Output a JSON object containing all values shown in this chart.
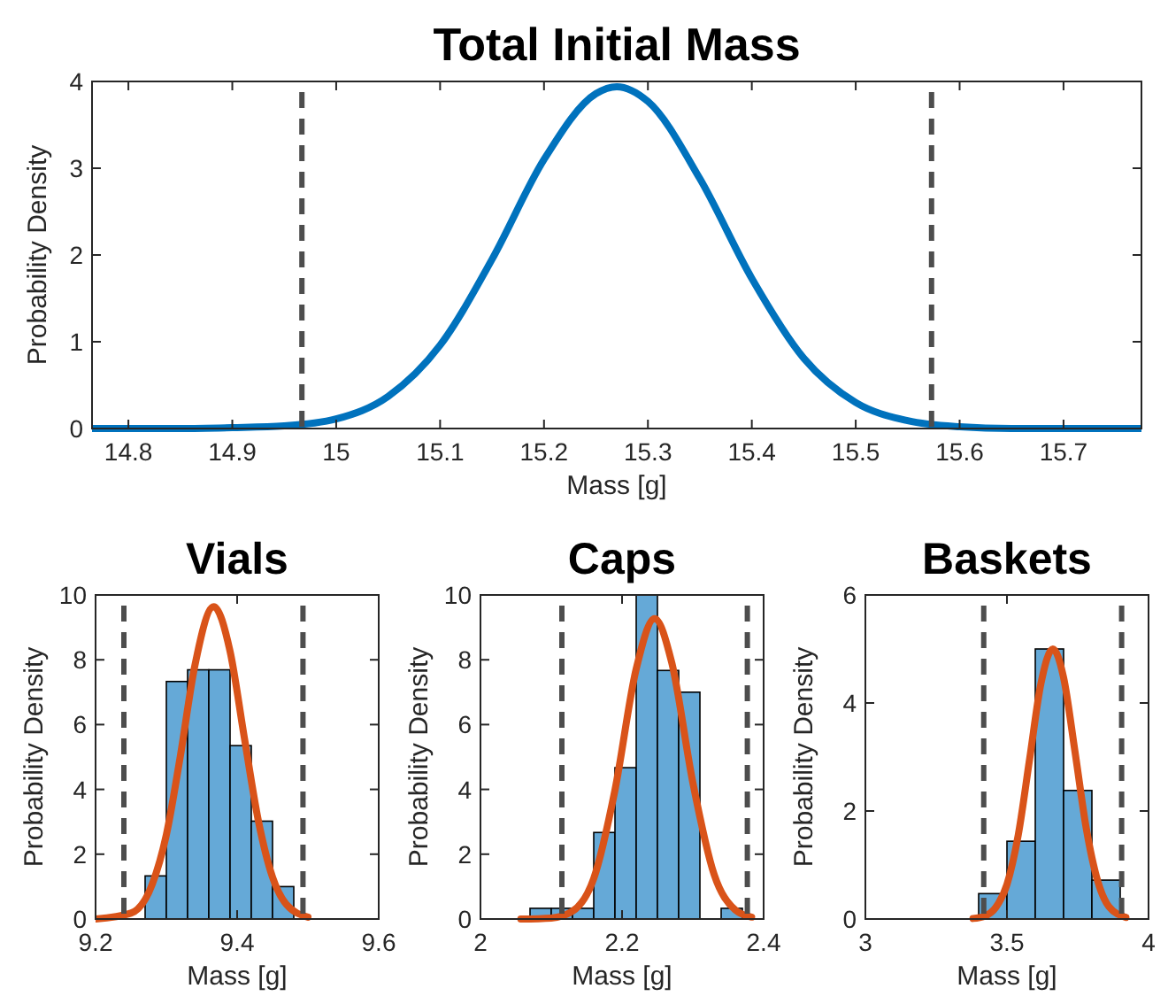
{
  "chart_data": [
    {
      "type": "line",
      "title": "Total Initial Mass",
      "xlabel": "Mass [g]",
      "ylabel": "Probability Density",
      "xlim": [
        14.765,
        15.775
      ],
      "ylim": [
        0,
        4
      ],
      "xticks": [
        14.8,
        14.9,
        15,
        15.1,
        15.2,
        15.3,
        15.4,
        15.5,
        15.6,
        15.7
      ],
      "yticks": [
        0,
        1,
        2,
        3,
        4
      ],
      "line_style": "solid",
      "marker": "none",
      "series": [
        {
          "color": "#0072bd",
          "x": [
            14.765,
            14.85,
            14.9,
            14.95,
            15.0,
            15.05,
            15.1,
            15.15,
            15.2,
            15.25,
            15.27,
            15.3,
            15.35,
            15.4,
            15.45,
            15.5,
            15.55,
            15.6,
            15.65,
            15.7,
            15.775
          ],
          "values": [
            0,
            0,
            0.01,
            0.03,
            0.11,
            0.37,
            0.96,
            1.95,
            3.1,
            3.86,
            3.94,
            3.77,
            2.88,
            1.73,
            0.81,
            0.3,
            0.09,
            0.02,
            0,
            0,
            0
          ]
        }
      ],
      "ref_lines": [
        {
          "axis": "x",
          "value": 14.967,
          "color": "#4d4d4d",
          "line_style": "dashed"
        },
        {
          "axis": "x",
          "value": 15.573,
          "color": "#4d4d4d",
          "line_style": "dashed"
        }
      ]
    },
    {
      "type": "histogram",
      "title": "Vials",
      "xlabel": "Mass [g]",
      "ylabel": "Probability Density",
      "xlim": [
        9.2,
        9.6
      ],
      "ylim": [
        0,
        10
      ],
      "xticks": [
        9.2,
        9.4,
        9.6
      ],
      "yticks": [
        0,
        2,
        4,
        6,
        8,
        10
      ],
      "series": [
        {
          "color": "#65a9d7",
          "bins": [
            9.27,
            9.3,
            9.33,
            9.36,
            9.39,
            9.42,
            9.45,
            9.48
          ],
          "values": [
            1.33,
            7.33,
            7.69,
            7.69,
            5.35,
            3.02,
            1.0
          ]
        },
        {
          "type": "line",
          "color": "#d95319",
          "x": [
            9.2,
            9.25,
            9.28,
            9.3,
            9.32,
            9.34,
            9.367,
            9.39,
            9.41,
            9.43,
            9.45,
            9.47,
            9.5
          ],
          "values": [
            0,
            0.18,
            1.07,
            2.6,
            5.06,
            7.79,
            9.64,
            8.26,
            5.62,
            3.03,
            1.29,
            0.44,
            0.06
          ]
        }
      ],
      "ref_lines": [
        {
          "axis": "x",
          "value": 9.24,
          "color": "#4d4d4d",
          "line_style": "dashed"
        },
        {
          "axis": "x",
          "value": 9.493,
          "color": "#4d4d4d",
          "line_style": "dashed"
        }
      ]
    },
    {
      "type": "histogram",
      "title": "Caps",
      "xlabel": "Mass [g]",
      "ylabel": "Probability Density",
      "xlim": [
        2,
        2.4
      ],
      "ylim": [
        0,
        10
      ],
      "xticks": [
        2,
        2.2,
        2.4
      ],
      "yticks": [
        0,
        2,
        4,
        6,
        8,
        10
      ],
      "series": [
        {
          "color": "#65a9d7",
          "bins": [
            2.07,
            2.1,
            2.13,
            2.16,
            2.19,
            2.22,
            2.25,
            2.28,
            2.31,
            2.34,
            2.37
          ],
          "values": [
            0.33,
            0.33,
            0.33,
            2.67,
            4.67,
            10,
            7.67,
            7.0,
            0,
            0.33
          ]
        },
        {
          "type": "line",
          "color": "#d95319",
          "x": [
            2.057,
            2.1,
            2.13,
            2.16,
            2.19,
            2.22,
            2.246,
            2.27,
            2.3,
            2.33,
            2.36,
            2.383
          ],
          "values": [
            0,
            0.03,
            0.24,
            1.25,
            3.98,
            7.72,
            9.27,
            7.93,
            4.21,
            1.38,
            0.28,
            0.06
          ]
        }
      ],
      "ref_lines": [
        {
          "axis": "x",
          "value": 2.115,
          "color": "#4d4d4d",
          "line_style": "dashed"
        },
        {
          "axis": "x",
          "value": 2.377,
          "color": "#4d4d4d",
          "line_style": "dashed"
        }
      ]
    },
    {
      "type": "histogram",
      "title": "Baskets",
      "xlabel": "Mass [g]",
      "ylabel": "Probability Density",
      "xlim": [
        3,
        4
      ],
      "ylim": [
        0,
        6
      ],
      "xticks": [
        3,
        3.5,
        4
      ],
      "yticks": [
        0,
        2,
        4,
        6
      ],
      "series": [
        {
          "color": "#65a9d7",
          "bins": [
            3.4,
            3.5,
            3.6,
            3.7,
            3.8,
            3.9
          ],
          "values": [
            0.47,
            1.44,
            5.0,
            2.38,
            0.72
          ]
        },
        {
          "type": "line",
          "color": "#d95319",
          "x": [
            3.38,
            3.42,
            3.46,
            3.5,
            3.54,
            3.58,
            3.62,
            3.662,
            3.7,
            3.74,
            3.78,
            3.82,
            3.86,
            3.92
          ],
          "values": [
            0.01,
            0.05,
            0.21,
            0.64,
            1.56,
            2.96,
            4.36,
            5.0,
            4.47,
            3.11,
            1.68,
            0.71,
            0.23,
            0.03
          ]
        }
      ],
      "ref_lines": [
        {
          "axis": "x",
          "value": 3.418,
          "color": "#4d4d4d",
          "line_style": "dashed"
        },
        {
          "axis": "x",
          "value": 3.905,
          "color": "#4d4d4d",
          "line_style": "dashed"
        }
      ]
    }
  ]
}
